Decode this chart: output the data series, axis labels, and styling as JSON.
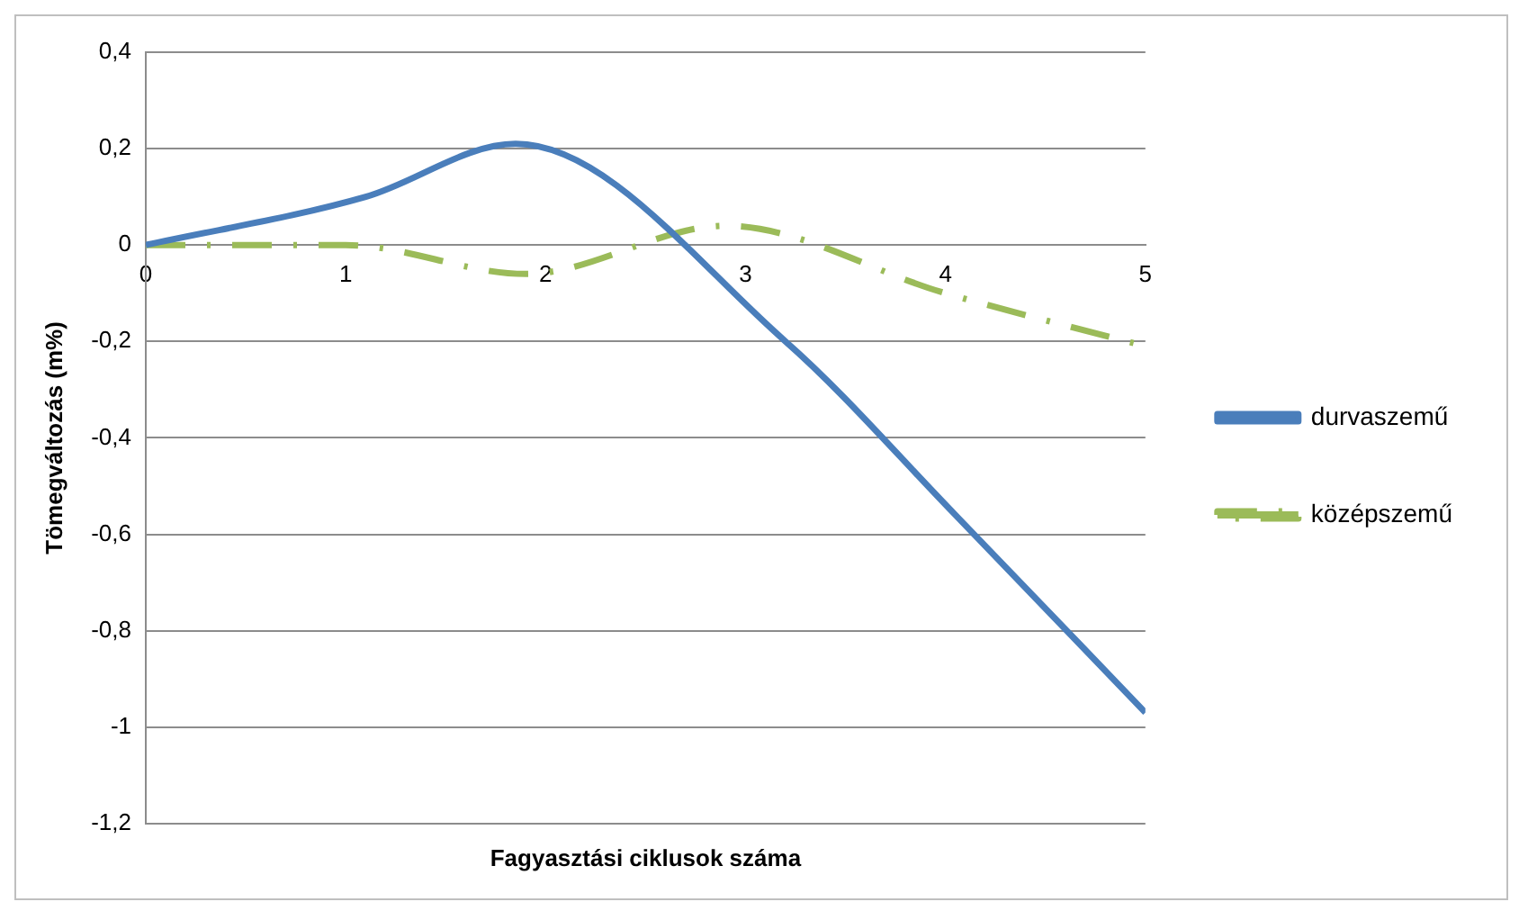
{
  "chart_data": {
    "type": "line",
    "xlabel": "Fagyasztási ciklusok száma",
    "ylabel": "Tömegváltozás (m%)",
    "xlim": [
      0,
      5
    ],
    "xticks": [
      0,
      1,
      2,
      3,
      4,
      5
    ],
    "ylim": [
      -1.2,
      0.4
    ],
    "yticks": [
      {
        "value": -1.2,
        "label": "-1,2"
      },
      -1,
      {
        "value": -0.8,
        "label": "-0,8"
      },
      {
        "value": -0.6,
        "label": "-0,6"
      },
      {
        "value": -0.4,
        "label": "-0,4"
      },
      {
        "value": -0.2,
        "label": "-0,2"
      },
      0,
      {
        "value": 0.2,
        "label": "0,2"
      },
      {
        "value": 0.4,
        "label": "0,4"
      }
    ],
    "grid": "y",
    "legend": "right",
    "series": [
      {
        "name": "durvaszemű",
        "color": "#4a7ebb",
        "line_style": "solid",
        "x": [
          0,
          1.1,
          1.85,
          3.2,
          4.05,
          5
        ],
        "values": [
          0,
          0.1,
          0.21,
          -0.2,
          -0.56,
          -0.97
        ]
      },
      {
        "name": "középszemű",
        "color": "#9bbb59",
        "line_style": "dashed",
        "x": [
          0,
          1,
          1.9,
          2.9,
          4,
          5
        ],
        "values": [
          0,
          0,
          -0.06,
          0.04,
          -0.1,
          -0.21
        ]
      }
    ]
  }
}
